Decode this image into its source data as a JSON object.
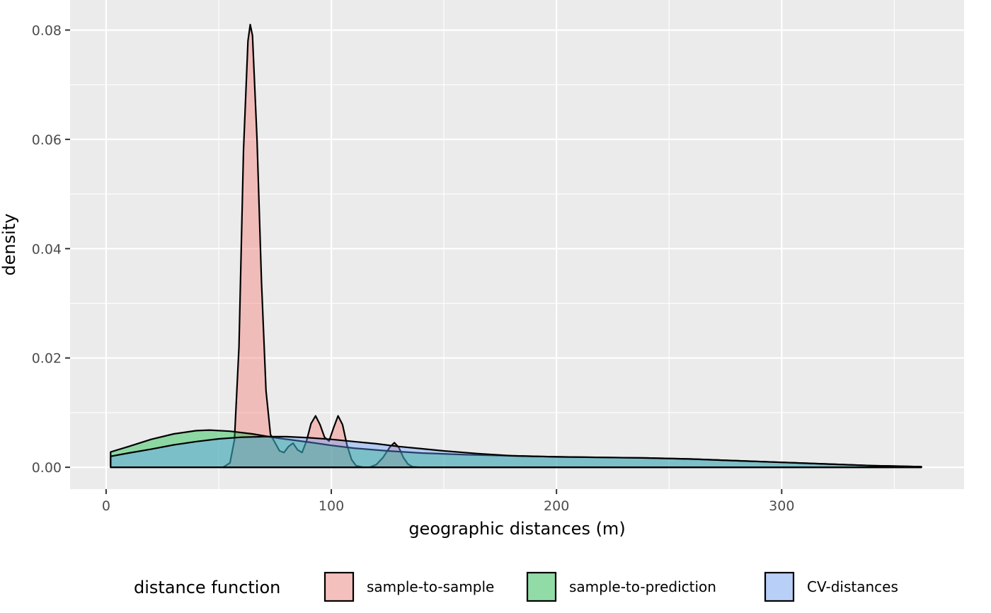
{
  "chart_data": {
    "type": "area",
    "xlabel": "geographic distances (m)",
    "ylabel": "density",
    "xlim": [
      -16,
      381
    ],
    "ylim": [
      -0.004,
      0.0855
    ],
    "x_ticks": [
      0,
      100,
      200,
      300
    ],
    "x_tick_labels": [
      "0",
      "100",
      "200",
      "300"
    ],
    "y_ticks": [
      0.0,
      0.02,
      0.04,
      0.06,
      0.08
    ],
    "y_tick_labels": [
      "0.00",
      "0.02",
      "0.04",
      "0.06",
      "0.08"
    ],
    "grid": true,
    "legend": {
      "title": "distance function",
      "position": "bottom"
    },
    "series": [
      {
        "name": "sample-to-sample",
        "fill": "#F8766D",
        "x": [
          52,
          55,
          57,
          59,
          61,
          63,
          64,
          65,
          67,
          69,
          71,
          73,
          75,
          77,
          79,
          81,
          83,
          85,
          87,
          89,
          91,
          93,
          95,
          97,
          99,
          101,
          103,
          105,
          107,
          109,
          111,
          114,
          117,
          120,
          123,
          126,
          128,
          130,
          132,
          134,
          136,
          139,
          145,
          200,
          250,
          300,
          362
        ],
        "y": [
          0.0,
          0.0008,
          0.005,
          0.022,
          0.058,
          0.078,
          0.081,
          0.079,
          0.06,
          0.034,
          0.014,
          0.006,
          0.0045,
          0.003,
          0.0027,
          0.0038,
          0.0044,
          0.0032,
          0.0027,
          0.0048,
          0.008,
          0.0094,
          0.0078,
          0.0055,
          0.0048,
          0.0072,
          0.0094,
          0.0078,
          0.004,
          0.0014,
          0.0003,
          0.0,
          0.0,
          0.0005,
          0.0018,
          0.0037,
          0.0045,
          0.0036,
          0.0018,
          0.0006,
          0.0001,
          0.0,
          0.0,
          0.0,
          0.0,
          0.0,
          0.0
        ]
      },
      {
        "name": "sample-to-prediction",
        "fill": "#00BA38",
        "x": [
          2,
          10,
          20,
          30,
          40,
          46,
          55,
          65,
          75,
          90,
          100,
          110,
          125,
          140,
          160,
          180,
          200,
          220,
          240,
          260,
          280,
          300,
          320,
          340,
          362
        ],
        "y": [
          0.0028,
          0.0038,
          0.0051,
          0.0061,
          0.0067,
          0.0068,
          0.0066,
          0.0061,
          0.0054,
          0.0046,
          0.004,
          0.0035,
          0.003,
          0.0026,
          0.0023,
          0.0021,
          0.0019,
          0.0018,
          0.0017,
          0.0015,
          0.0012,
          0.0009,
          0.0006,
          0.0003,
          0.0001
        ]
      },
      {
        "name": "CV-distances",
        "fill": "#619CFF",
        "x": [
          2,
          10,
          20,
          30,
          40,
          50,
          60,
          70,
          80,
          90,
          100,
          110,
          120,
          130,
          140,
          150,
          165,
          180,
          200,
          220,
          240,
          260,
          280,
          300,
          320,
          340,
          362
        ],
        "y": [
          0.002,
          0.0026,
          0.0033,
          0.0041,
          0.0047,
          0.0052,
          0.0055,
          0.0056,
          0.0056,
          0.0054,
          0.0051,
          0.0047,
          0.0043,
          0.0038,
          0.0034,
          0.003,
          0.0025,
          0.0021,
          0.0019,
          0.0018,
          0.0017,
          0.0015,
          0.0012,
          0.0009,
          0.0006,
          0.0003,
          0.0001
        ]
      }
    ]
  }
}
